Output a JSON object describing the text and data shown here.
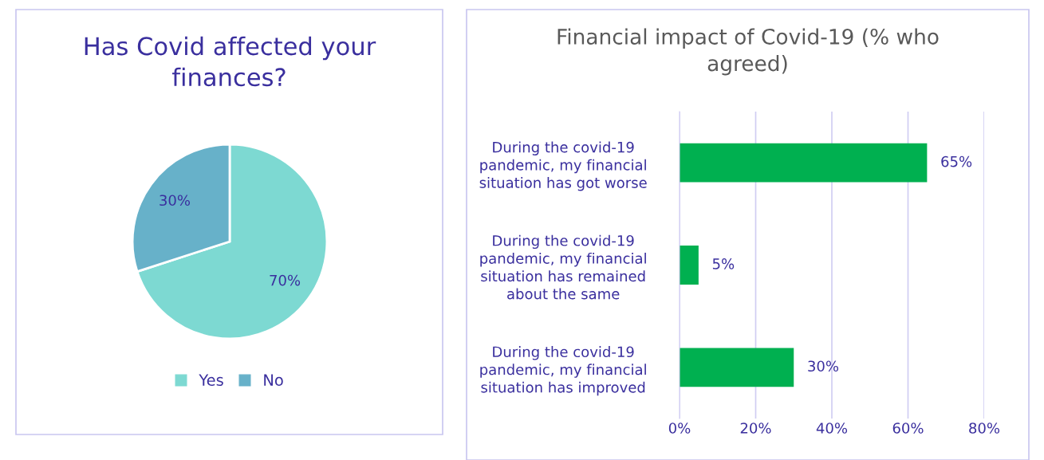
{
  "chart_data": [
    {
      "type": "pie",
      "title": "Has Covid affected your\nfinances?",
      "categories": [
        "Yes",
        "No"
      ],
      "values": [
        70,
        30
      ],
      "colors": [
        "#7dd9d2",
        "#67b1c9"
      ],
      "value_labels": [
        "70%",
        "30%"
      ],
      "legend": "bottom"
    },
    {
      "type": "bar",
      "orientation": "horizontal",
      "title": "Financial impact of Covid-19 (% who\nagreed)",
      "categories": [
        "During the covid-19\npandemic, my financial\nsituation has got worse",
        "During the covid-19\npandemic, my financial\nsituation has remained\nabout the same",
        "During the covid-19\npandemic, my financial\nsituation has improved"
      ],
      "values": [
        65,
        5,
        30
      ],
      "color": "#00b050",
      "value_labels": [
        "65%",
        "5%",
        "30%"
      ],
      "xlim": [
        0,
        80
      ],
      "xticks": [
        {
          "value": 0,
          "label": "0%"
        },
        {
          "value": 20,
          "label": "20%"
        },
        {
          "value": 40,
          "label": "40%"
        },
        {
          "value": 60,
          "label": "60%"
        },
        {
          "value": 80,
          "label": "80%"
        }
      ],
      "grid": "x"
    }
  ]
}
